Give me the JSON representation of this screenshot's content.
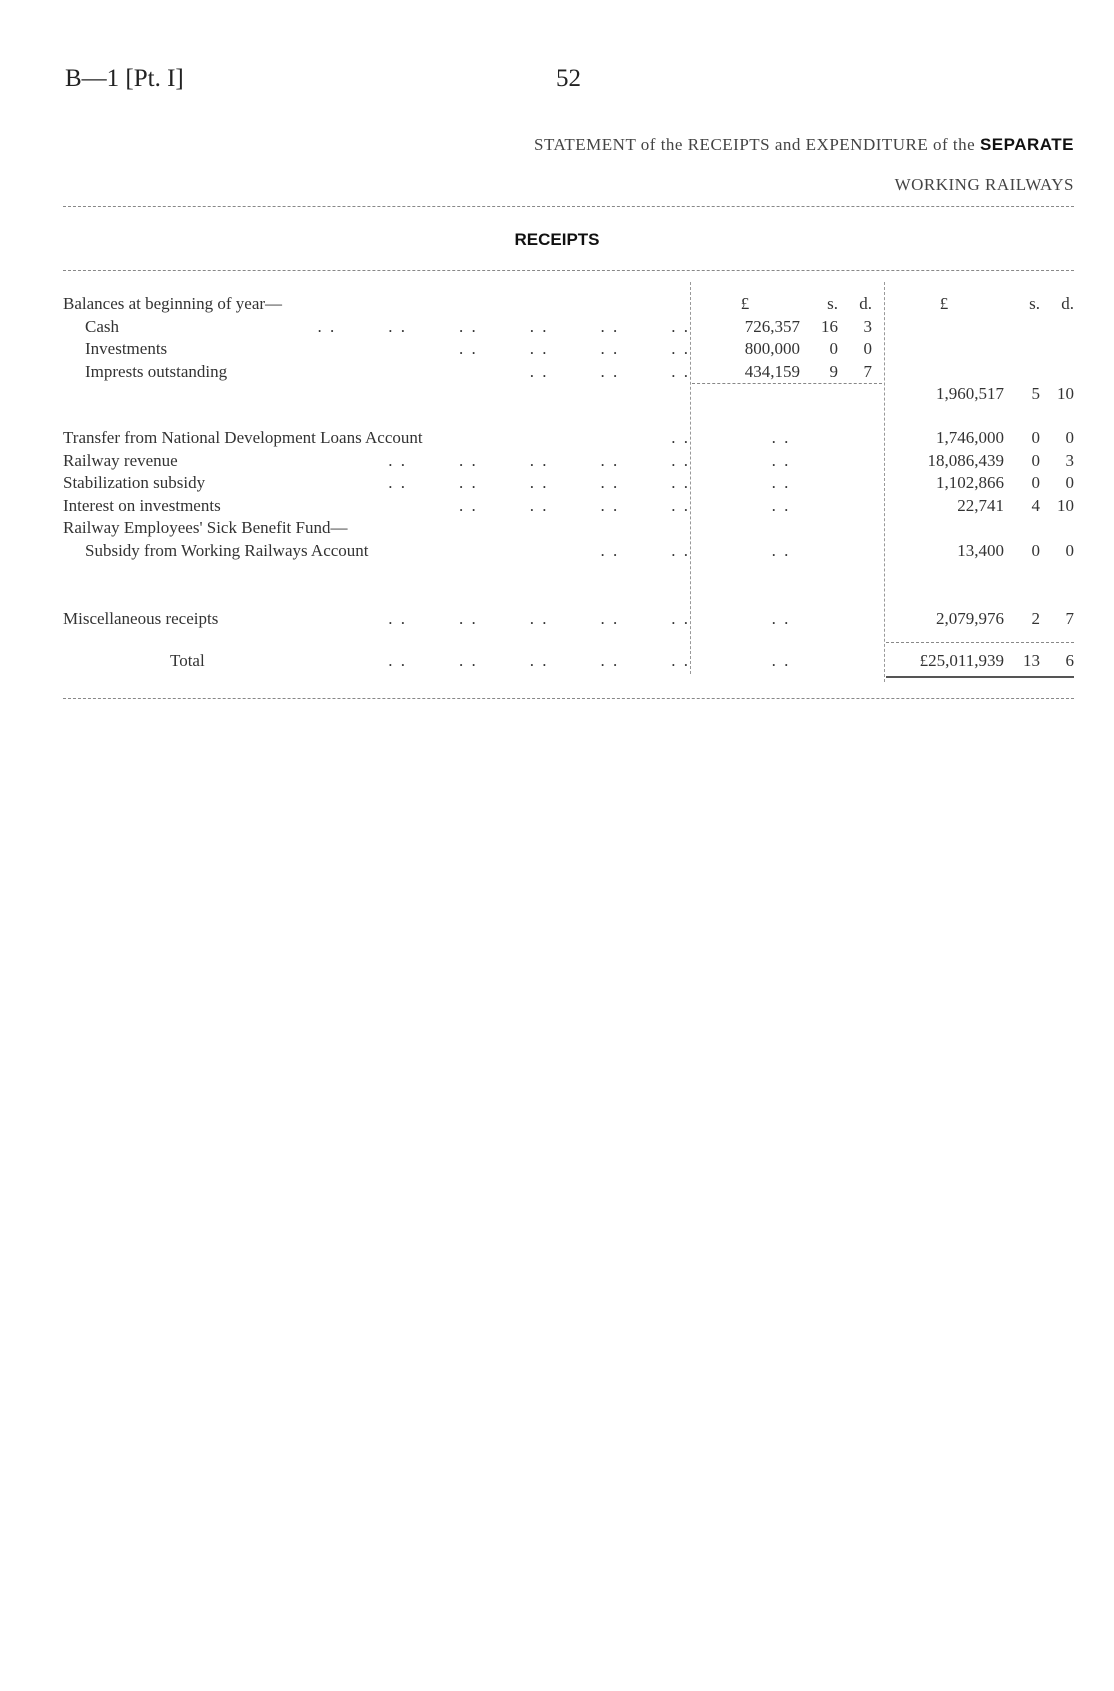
{
  "header": {
    "reference": "B—1 [Pt. I]",
    "page_number": "52"
  },
  "title": {
    "line1_prefix": "STATEMENT of the RECEIPTS and EXPENDITURE of the",
    "line1_bold": "SEPARATE",
    "line2": "WORKING RAILWAYS"
  },
  "section_heading": "RECEIPTS",
  "column_headers": {
    "pounds": "£",
    "shillings": "s.",
    "pence": "d."
  },
  "leader": ". .",
  "balances": {
    "heading": "Balances at beginning of year—",
    "items": [
      {
        "label": "Cash",
        "pounds": "726,357",
        "s": "16",
        "d": "3"
      },
      {
        "label": "Investments",
        "pounds": "800,000",
        "s": "0",
        "d": "0"
      },
      {
        "label": "Imprests outstanding",
        "pounds": "434,159",
        "s": "9",
        "d": "7"
      }
    ],
    "subtotal": {
      "pounds": "1,960,517",
      "s": "5",
      "d": "10"
    }
  },
  "receipts": [
    {
      "label": "Transfer from National Development Loans Account",
      "pounds": "1,746,000",
      "s": "0",
      "d": "0"
    },
    {
      "label": "Railway revenue",
      "pounds": "18,086,439",
      "s": "0",
      "d": "3"
    },
    {
      "label": "Stabilization subsidy",
      "pounds": "1,102,866",
      "s": "0",
      "d": "0"
    },
    {
      "label": "Interest on investments",
      "pounds": "22,741",
      "s": "4",
      "d": "10"
    },
    {
      "label": "Railway Employees' Sick Benefit Fund—",
      "label2": "Subsidy from Working Railways Account",
      "pounds": "13,400",
      "s": "0",
      "d": "0"
    },
    {
      "label": "Miscellaneous receipts",
      "pounds": "2,079,976",
      "s": "2",
      "d": "7"
    }
  ],
  "total": {
    "label": "Total",
    "pounds": "£25,011,939",
    "s": "13",
    "d": "6"
  }
}
